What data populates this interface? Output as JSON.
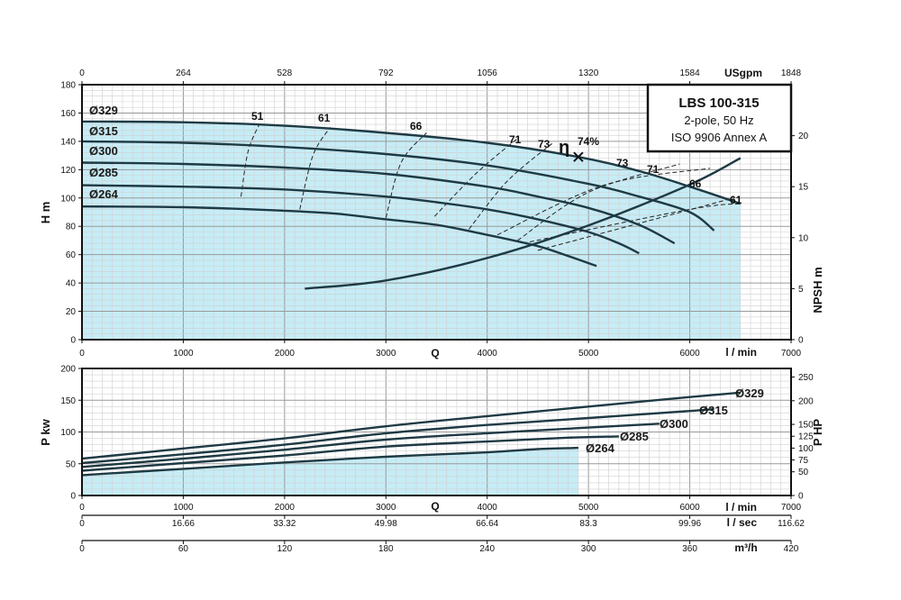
{
  "title_box": {
    "model": "LBS 100-315",
    "line2": "2-pole, 50 Hz",
    "line3": "ISO 9906 Annex A"
  },
  "chart_data": [
    {
      "type": "line",
      "name": "head-curves",
      "xlabel": "Q",
      "x_unit": "l / min",
      "ylabel": "H m",
      "xlim": [
        0,
        7000
      ],
      "ylim": [
        0,
        180
      ],
      "x_ticks": [
        "0",
        "1000",
        "2000",
        "3000",
        "4000",
        "5000",
        "6000",
        "7000"
      ],
      "y_ticks": [
        "0",
        "20",
        "40",
        "60",
        "80",
        "100",
        "120",
        "140",
        "160",
        "180"
      ],
      "top_axis": {
        "label": "USgpm",
        "ticks": [
          "0",
          "264",
          "528",
          "792",
          "1056",
          "1320",
          "1584",
          "1848"
        ]
      },
      "right_axis": {
        "label": "NPSH m",
        "ticks": [
          "0",
          "5",
          "10",
          "15",
          "20"
        ],
        "range": [
          0,
          25
        ]
      },
      "series": [
        {
          "name": "Ø329",
          "x": [
            0,
            1000,
            2000,
            3000,
            4000,
            4900,
            5500,
            6000,
            6500
          ],
          "y": [
            154,
            153.5,
            151,
            146,
            139,
            129,
            119,
            108,
            96
          ]
        },
        {
          "name": "Ø315",
          "x": [
            0,
            1000,
            2000,
            3000,
            4000,
            5000,
            5500,
            6000,
            6240
          ],
          "y": [
            140,
            139,
            136,
            131,
            123,
            110,
            101,
            90,
            77
          ]
        },
        {
          "name": "Ø300",
          "x": [
            0,
            1000,
            2000,
            3000,
            4000,
            4500,
            5000,
            5500,
            5850
          ],
          "y": [
            125,
            124,
            121.5,
            117,
            108,
            101,
            93,
            81,
            68
          ]
        },
        {
          "name": "Ø285",
          "x": [
            0,
            1000,
            2000,
            3000,
            3500,
            4000,
            4500,
            5000,
            5300,
            5500
          ],
          "y": [
            109,
            108,
            106,
            101,
            97,
            92,
            85,
            76,
            68,
            61
          ]
        },
        {
          "name": "Ø264",
          "x": [
            0,
            1000,
            2000,
            2500,
            3000,
            3500,
            4000,
            4500,
            4800,
            5080
          ],
          "y": [
            94,
            93.5,
            91,
            89,
            85,
            81,
            74,
            66,
            59,
            52
          ]
        },
        {
          "name": "NPSH",
          "axis": "right",
          "x": [
            2200,
            3000,
            4000,
            5000,
            6000,
            6500
          ],
          "y": [
            5,
            5.8,
            8,
            11.2,
            15.2,
            17.8
          ]
        }
      ],
      "efficiency": {
        "symbol": "η",
        "labels_left": [
          "51",
          "61",
          "66",
          "71",
          "73",
          "74%"
        ],
        "labels_right": [
          "73",
          "71",
          "66",
          "61"
        ],
        "bep": {
          "x": 4900,
          "y": 129
        }
      },
      "shaded_region": true,
      "grid": true
    },
    {
      "type": "line",
      "name": "power-curves",
      "xlabel": "Q",
      "x_unit": "l / min",
      "ylabel": "P kw",
      "xlim": [
        0,
        7000
      ],
      "ylim": [
        0,
        200
      ],
      "y_ticks": [
        "0",
        "50",
        "100",
        "150",
        "200"
      ],
      "right_axis": {
        "label": "P HP",
        "ticks": [
          "0",
          "50",
          "75",
          "100",
          "125",
          "150",
          "200",
          "250"
        ],
        "range": [
          0,
          268
        ]
      },
      "bottom_axes": [
        {
          "label": "l / min",
          "ticks": [
            "0",
            "1000",
            "2000",
            "3000",
            "4000",
            "5000",
            "6000",
            "7000"
          ]
        },
        {
          "label": "l / sec",
          "ticks": [
            "0",
            "16.66",
            "33.32",
            "49.98",
            "66.64",
            "83.3",
            "99.96",
            "116.62"
          ]
        },
        {
          "label": "m³/h",
          "ticks": [
            "0",
            "60",
            "120",
            "180",
            "240",
            "300",
            "360",
            "420"
          ]
        }
      ],
      "series": [
        {
          "name": "Ø329",
          "x": [
            0,
            1000,
            2000,
            3000,
            4000,
            5000,
            6000,
            6500
          ],
          "y": [
            58,
            74,
            90,
            109,
            125,
            140,
            155,
            162
          ]
        },
        {
          "name": "Ø315",
          "x": [
            0,
            1000,
            2000,
            3000,
            4000,
            5000,
            6000,
            6240
          ],
          "y": [
            51,
            65,
            80,
            98,
            111,
            122,
            133,
            136
          ]
        },
        {
          "name": "Ø300",
          "x": [
            0,
            1000,
            2000,
            3000,
            4000,
            5000,
            5700
          ],
          "y": [
            45,
            58,
            72,
            88,
            98,
            107,
            113
          ]
        },
        {
          "name": "Ø285",
          "x": [
            0,
            1000,
            2000,
            3000,
            4000,
            4800,
            5300
          ],
          "y": [
            39,
            51,
            63,
            77,
            85,
            91,
            93
          ]
        },
        {
          "name": "Ø264",
          "x": [
            0,
            1000,
            2000,
            3000,
            4000,
            4500,
            4900
          ],
          "y": [
            32,
            42,
            52,
            61,
            68,
            73,
            75
          ]
        }
      ],
      "shaded_region": true,
      "grid": true
    }
  ]
}
